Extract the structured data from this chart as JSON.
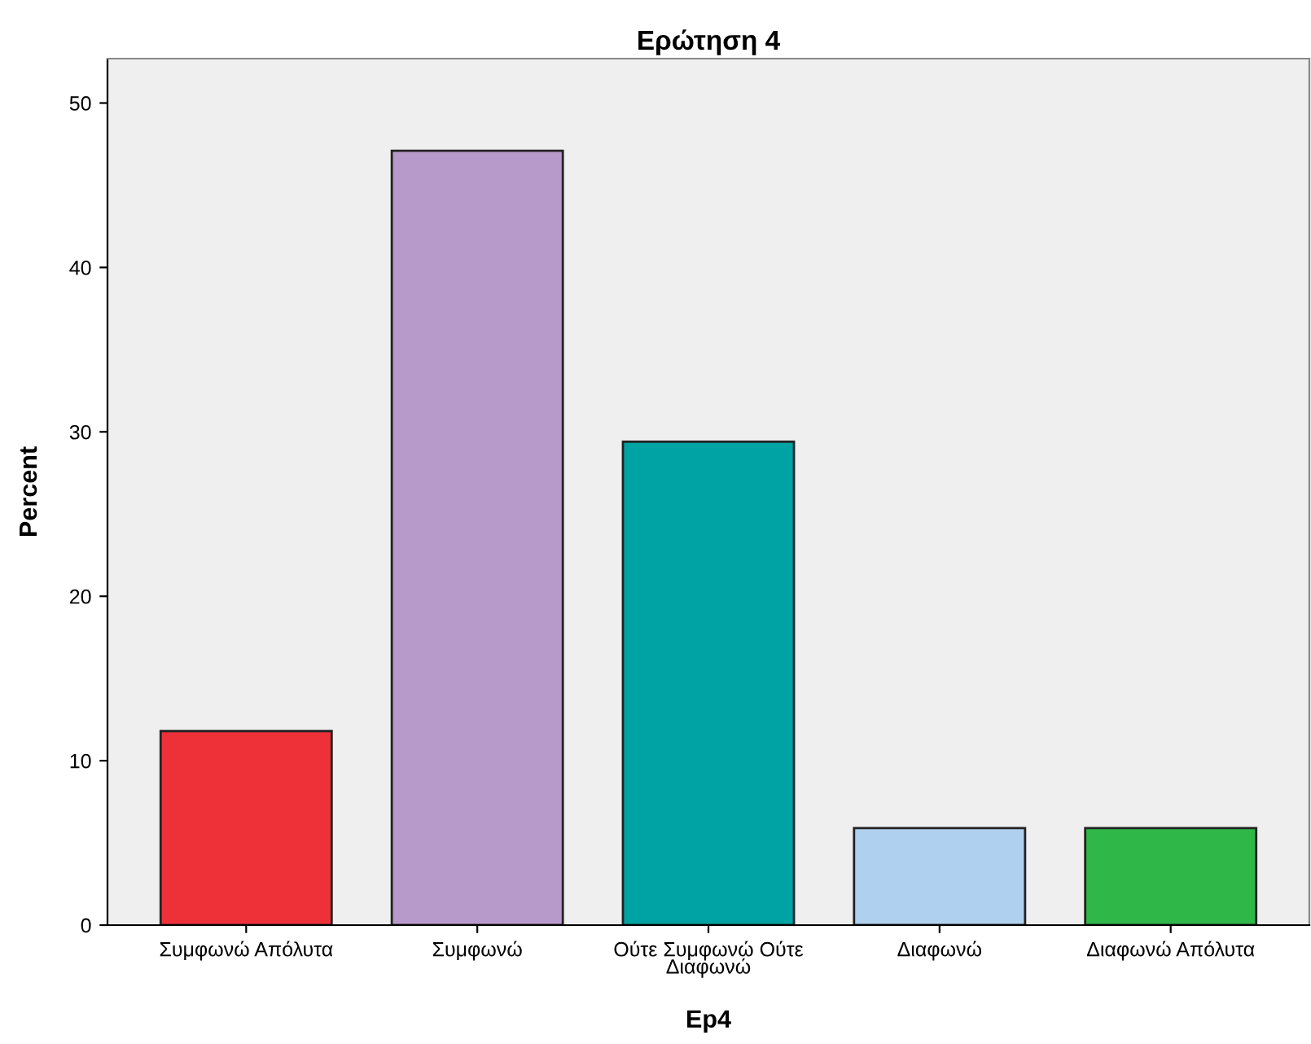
{
  "chart_data": {
    "type": "bar",
    "title": "Ερώτηση 4",
    "xlabel": "Ep4",
    "ylabel": "Percent",
    "categories": [
      "Συμφωνώ Απόλυτα",
      "Συμφωνώ",
      "Ούτε Συμφωνώ Ούτε\nΔιαφωνώ",
      "Διαφωνώ",
      "Διαφωνώ Απόλυτα"
    ],
    "values": [
      11.8,
      47.1,
      29.4,
      5.9,
      5.9
    ],
    "colors": [
      "#ee3039",
      "#b89aca",
      "#00a3a3",
      "#afd0ee",
      "#2fb748"
    ],
    "ylim": [
      0,
      52.7
    ],
    "yticks": [
      0,
      10,
      20,
      30,
      40,
      50
    ],
    "grid": false,
    "legend": false
  }
}
